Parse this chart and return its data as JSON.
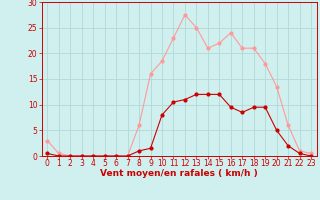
{
  "x": [
    0,
    1,
    2,
    3,
    4,
    5,
    6,
    7,
    8,
    9,
    10,
    11,
    12,
    13,
    14,
    15,
    16,
    17,
    18,
    19,
    20,
    21,
    22,
    23
  ],
  "y_mean": [
    0.5,
    0,
    0,
    0,
    0,
    0,
    0,
    0,
    1,
    1.5,
    8,
    10.5,
    11,
    12,
    12,
    12,
    9.5,
    8.5,
    9.5,
    9.5,
    5,
    2,
    0.5,
    0
  ],
  "y_gust": [
    3,
    0.5,
    0,
    0,
    0,
    0,
    0,
    0,
    6,
    16,
    18.5,
    23,
    27.5,
    25,
    21,
    22,
    24,
    21,
    21,
    18,
    13.5,
    6,
    1,
    0.5
  ],
  "mean_color": "#cc0000",
  "gust_color": "#ff9999",
  "bg_color": "#d0f0f0",
  "grid_color": "#b0d8d8",
  "axis_color": "#cc0000",
  "xlabel": "Vent moyen/en rafales ( km/h )",
  "ylim": [
    0,
    30
  ],
  "xlim": [
    -0.5,
    23.5
  ],
  "yticks": [
    0,
    5,
    10,
    15,
    20,
    25,
    30
  ],
  "xticks": [
    0,
    1,
    2,
    3,
    4,
    5,
    6,
    7,
    8,
    9,
    10,
    11,
    12,
    13,
    14,
    15,
    16,
    17,
    18,
    19,
    20,
    21,
    22,
    23
  ],
  "xlabel_fontsize": 6.5,
  "tick_fontsize": 5.5,
  "marker_size": 2,
  "linewidth": 0.8
}
